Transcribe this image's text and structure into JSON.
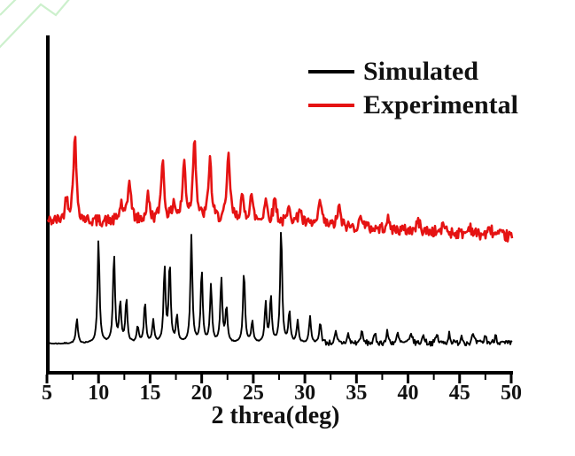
{
  "window": {
    "background": "#ffffff"
  },
  "watermark": {
    "color": "#c7eec7"
  },
  "legend": {
    "items": [
      {
        "label": "Simulated",
        "color": "#000000"
      },
      {
        "label": "Experimental",
        "color": "#e51212"
      }
    ]
  },
  "chart_data": {
    "type": "line",
    "title": "",
    "xlabel": "2 threa(deg)",
    "ylabel": "",
    "xlim": [
      5,
      50
    ],
    "x_major_ticks": [
      5,
      10,
      15,
      20,
      25,
      30,
      35,
      40,
      45,
      50
    ],
    "x_minor_interval": 2.5,
    "grid": false,
    "legend_position": "upper-right",
    "y_axis_labeled": false,
    "description": "Powder XRD patterns; intensity in arbitrary units; experimental trace offset above simulated trace",
    "series": [
      {
        "name": "Simulated",
        "color": "#000000",
        "offset": "lower",
        "peaks": [
          [
            7.9,
            21
          ],
          [
            10.0,
            90
          ],
          [
            11.5,
            77
          ],
          [
            12.1,
            34
          ],
          [
            12.7,
            38
          ],
          [
            13.8,
            14
          ],
          [
            14.5,
            35
          ],
          [
            15.3,
            19
          ],
          [
            16.4,
            65
          ],
          [
            16.9,
            69
          ],
          [
            17.6,
            23
          ],
          [
            19.0,
            92
          ],
          [
            20.0,
            63
          ],
          [
            20.9,
            50
          ],
          [
            21.9,
            56
          ],
          [
            22.4,
            31
          ],
          [
            24.1,
            63
          ],
          [
            24.9,
            19
          ],
          [
            26.2,
            34
          ],
          [
            26.7,
            40
          ],
          [
            27.7,
            100
          ],
          [
            28.5,
            27
          ],
          [
            29.3,
            19
          ],
          [
            30.5,
            23
          ],
          [
            31.5,
            19
          ],
          [
            33.0,
            9
          ],
          [
            34.2,
            8
          ],
          [
            35.5,
            11
          ],
          [
            36.8,
            8
          ],
          [
            38.0,
            10
          ],
          [
            39.0,
            8
          ],
          [
            40.3,
            10
          ],
          [
            41.5,
            8
          ],
          [
            42.8,
            8
          ],
          [
            44.0,
            9
          ],
          [
            45.2,
            7
          ],
          [
            46.3,
            8
          ],
          [
            47.5,
            7
          ],
          [
            48.5,
            8
          ]
        ],
        "noise": {
          "base": 0.6,
          "after_deg": 31.5,
          "after": 3.2
        }
      },
      {
        "name": "Experimental",
        "color": "#e51212",
        "offset": "upper",
        "peaks": [
          [
            6.9,
            26
          ],
          [
            7.7,
            100
          ],
          [
            12.2,
            20
          ],
          [
            13.0,
            49
          ],
          [
            14.8,
            29
          ],
          [
            16.2,
            72
          ],
          [
            17.3,
            21
          ],
          [
            18.3,
            67
          ],
          [
            19.3,
            98
          ],
          [
            20.8,
            72
          ],
          [
            22.6,
            77
          ],
          [
            23.9,
            26
          ],
          [
            24.8,
            31
          ],
          [
            26.2,
            26
          ],
          [
            27.1,
            29
          ],
          [
            28.5,
            21
          ],
          [
            29.5,
            19
          ],
          [
            31.5,
            28
          ],
          [
            33.3,
            23
          ],
          [
            35.5,
            15
          ],
          [
            38.0,
            12
          ],
          [
            41.0,
            12
          ],
          [
            43.5,
            10
          ],
          [
            46.0,
            10
          ],
          [
            48.0,
            8
          ]
        ],
        "noise": {
          "base": 6.5,
          "after_deg": 50,
          "after": 6.5
        }
      }
    ]
  }
}
